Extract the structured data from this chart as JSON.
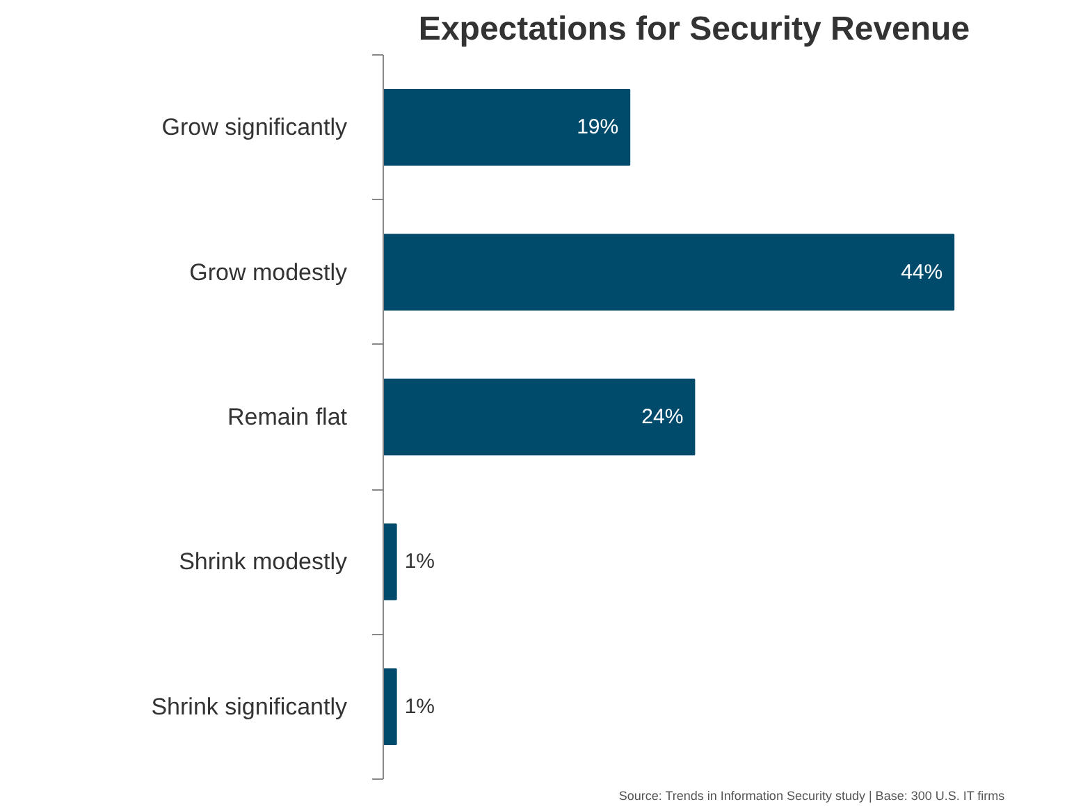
{
  "chart_data": {
    "type": "bar",
    "orientation": "horizontal",
    "title": "Expectations for Security Revenue",
    "categories": [
      "Grow significantly",
      "Grow modestly",
      "Remain flat",
      "Shrink modestly",
      "Shrink significantly"
    ],
    "values": [
      19,
      44,
      24,
      1,
      1
    ],
    "value_labels": [
      "19%",
      "44%",
      "24%",
      "1%",
      "1%"
    ],
    "color": "#004b6b",
    "grid": false,
    "annotations": [
      "Source: Trends in Information Security study | Base: 300 U.S. IT firms"
    ]
  }
}
